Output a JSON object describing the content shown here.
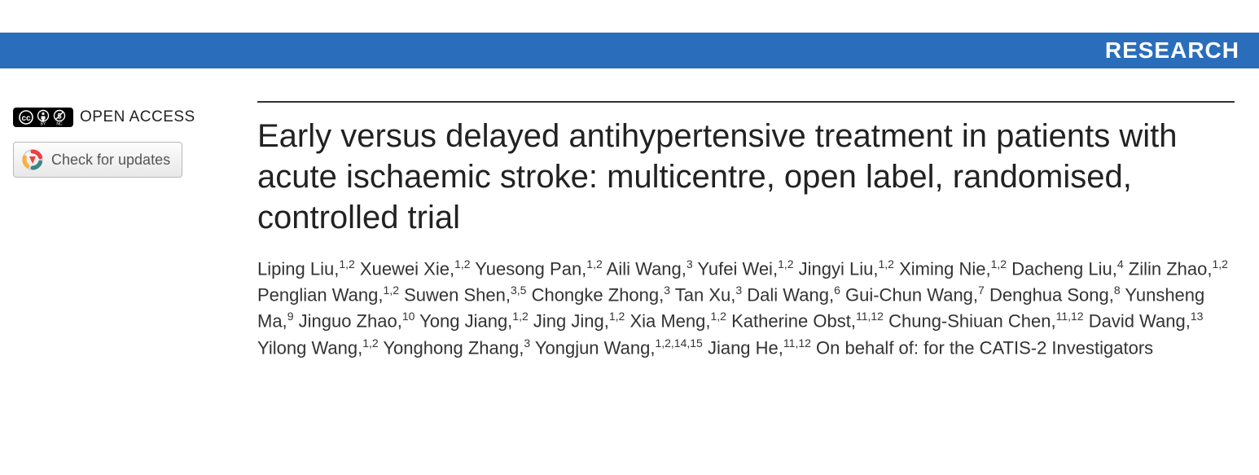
{
  "banner": {
    "label": "RESEARCH",
    "bg_color": "#2a6ebb",
    "text_color": "#ffffff"
  },
  "sidebar": {
    "open_access_label": "OPEN ACCESS",
    "updates_button_label": "Check for updates"
  },
  "article": {
    "title": "Early versus delayed antihypertensive treatment in patients with acute ischaemic stroke: multicentre, open label, randomised, controlled trial",
    "authors": [
      {
        "name": "Liping Liu",
        "affil": "1,2"
      },
      {
        "name": "Xuewei Xie",
        "affil": "1,2"
      },
      {
        "name": "Yuesong Pan",
        "affil": "1,2"
      },
      {
        "name": "Aili Wang",
        "affil": "3"
      },
      {
        "name": "Yufei Wei",
        "affil": "1,2"
      },
      {
        "name": "Jingyi Liu",
        "affil": "1,2"
      },
      {
        "name": "Ximing Nie",
        "affil": "1,2"
      },
      {
        "name": "Dacheng Liu",
        "affil": "4"
      },
      {
        "name": "Zilin Zhao",
        "affil": "1,2"
      },
      {
        "name": "Penglian Wang",
        "affil": "1,2"
      },
      {
        "name": "Suwen Shen",
        "affil": "3,5"
      },
      {
        "name": "Chongke Zhong",
        "affil": "3"
      },
      {
        "name": "Tan Xu",
        "affil": "3"
      },
      {
        "name": "Dali Wang",
        "affil": "6"
      },
      {
        "name": "Gui-Chun Wang",
        "affil": "7"
      },
      {
        "name": "Denghua Song",
        "affil": "8"
      },
      {
        "name": "Yunsheng Ma",
        "affil": "9"
      },
      {
        "name": "Jinguo Zhao",
        "affil": "10"
      },
      {
        "name": "Yong Jiang",
        "affil": "1,2"
      },
      {
        "name": "Jing Jing",
        "affil": "1,2"
      },
      {
        "name": "Xia Meng",
        "affil": "1,2"
      },
      {
        "name": "Katherine Obst",
        "affil": "11,12"
      },
      {
        "name": "Chung-Shiuan Chen",
        "affil": "11,12"
      },
      {
        "name": "David Wang",
        "affil": "13"
      },
      {
        "name": "Yilong Wang",
        "affil": "1,2"
      },
      {
        "name": "Yonghong Zhang",
        "affil": "3"
      },
      {
        "name": "Yongjun Wang",
        "affil": "1,2,14,15"
      },
      {
        "name": "Jiang He",
        "affil": "11,12"
      }
    ],
    "behalf": "On behalf of: for the CATIS-2 Investigators"
  },
  "style": {
    "title_fontsize": 40,
    "author_fontsize": 22,
    "banner_fontsize": 28,
    "title_color": "#222222",
    "author_color": "#333333",
    "rule_color": "#333333"
  }
}
